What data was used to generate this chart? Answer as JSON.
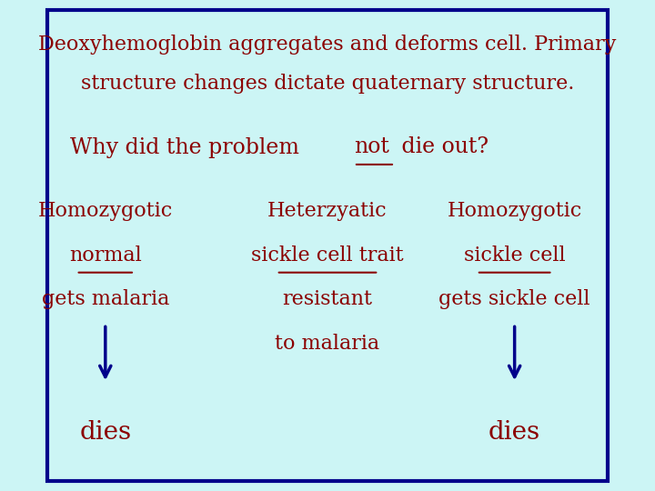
{
  "bg_color": "#ccf5f5",
  "border_color": "#00008B",
  "text_color": "#8B0000",
  "arrow_color": "#00008B",
  "title_line1": "Deoxyhemoglobin aggregates and deforms cell. Primary",
  "title_line2": "structure changes dictate quaternary structure.",
  "col1_line1": "Homozygotic",
  "col1_line2": "normal",
  "col1_line3": "gets malaria",
  "col1_dies": "dies",
  "col2_line1": "Heterzyatic",
  "col2_line2": "sickle cell trait",
  "col2_line3": "resistant",
  "col2_line4": "to malaria",
  "col3_line1": "Homozygotic",
  "col3_line2": "sickle cell",
  "col3_line3": "gets sickle cell",
  "col3_dies": "dies",
  "title_fontsize": 16,
  "subtitle_fontsize": 17,
  "col_fontsize": 16,
  "dies_fontsize": 20
}
